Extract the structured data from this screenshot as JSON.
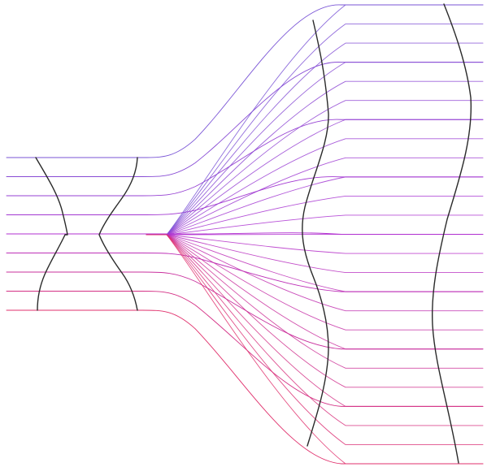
{
  "diagram": {
    "type": "optical-ray-diagram",
    "description_visible_text": "",
    "colors": {
      "background": "#ffffff",
      "surface_stroke": "#2a2a2a",
      "ray_top": "#7a55d6",
      "ray_mid": "#b12fd0",
      "ray_bottom": "#e0306c"
    },
    "input_ray_count": 9,
    "expanded_ray_count": 25,
    "surface_count": 4
  }
}
